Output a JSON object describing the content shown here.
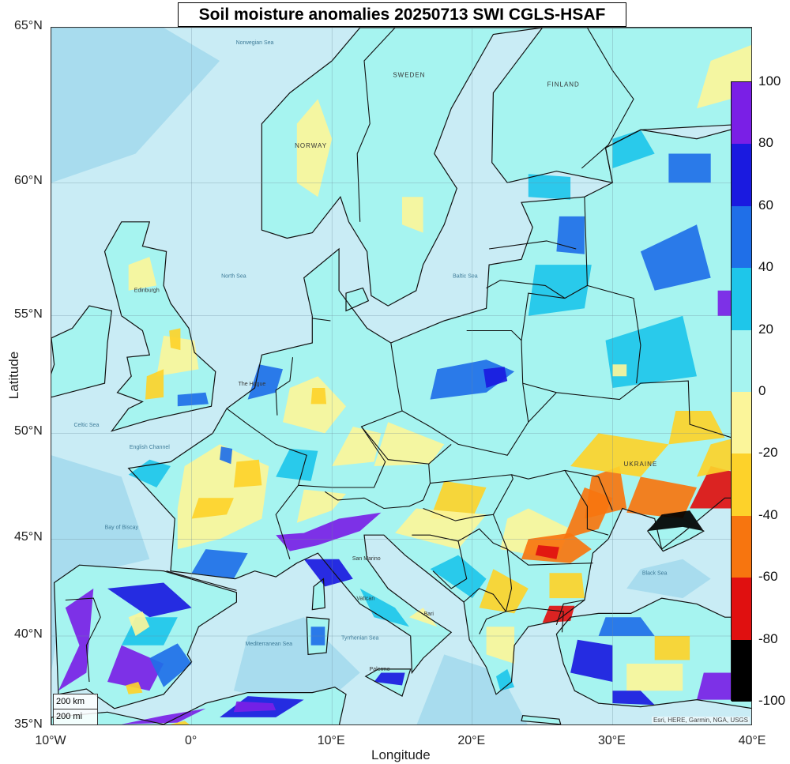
{
  "title": "Soil moisture anomalies 20250713 SWI CGLS-HSAF",
  "axes": {
    "xlabel": "Longitude",
    "ylabel": "Latitude",
    "x_ticks": [
      {
        "label": "10°W",
        "lon": -10
      },
      {
        "label": "0°",
        "lon": 0
      },
      {
        "label": "10°E",
        "lon": 10
      },
      {
        "label": "20°E",
        "lon": 20
      },
      {
        "label": "30°E",
        "lon": 30
      },
      {
        "label": "40°E",
        "lon": 40
      }
    ],
    "y_ticks": [
      {
        "label": "65°N",
        "lat": 65
      },
      {
        "label": "60°N",
        "lat": 60
      },
      {
        "label": "55°N",
        "lat": 55
      },
      {
        "label": "50°N",
        "lat": 50
      },
      {
        "label": "45°N",
        "lat": 45
      },
      {
        "label": "40°N",
        "lat": 40
      },
      {
        "label": "35°N",
        "lat": 35
      }
    ],
    "lon_range": [
      -10,
      40
    ],
    "lat_range": [
      35,
      65
    ]
  },
  "colorbar": {
    "ticks": [
      "100",
      "80",
      "60",
      "40",
      "20",
      "0",
      "-20",
      "-40",
      "-60",
      "-80",
      "-100"
    ],
    "segments": [
      {
        "from": 80,
        "to": 100,
        "color": "#7a1fe6"
      },
      {
        "from": 60,
        "to": 80,
        "color": "#1a1ae0"
      },
      {
        "from": 40,
        "to": 60,
        "color": "#1f6fe8"
      },
      {
        "from": 20,
        "to": 40,
        "color": "#1ec6ea"
      },
      {
        "from": 0,
        "to": 20,
        "color": "#a6f4f0"
      },
      {
        "from": -20,
        "to": 0,
        "color": "#fbf59a"
      },
      {
        "from": -40,
        "to": -20,
        "color": "#fdd22a"
      },
      {
        "from": -60,
        "to": -40,
        "color": "#f7750f"
      },
      {
        "from": -80,
        "to": -60,
        "color": "#e01010"
      },
      {
        "from": -100,
        "to": -80,
        "color": "#000000"
      }
    ]
  },
  "map_labels": {
    "countries": [
      "NORWAY",
      "SWEDEN",
      "FINLAND",
      "UKRAINE"
    ],
    "seas": [
      "North Sea",
      "Norwegian Sea",
      "Baltic Sea",
      "Black Sea",
      "Mediterranean Sea",
      "Tyrrhenian Sea",
      "Bay of Biscay",
      "Celtic Sea",
      "English Channel"
    ],
    "cities": [
      "Edinburgh",
      "The Hague",
      "San Marino",
      "Vatican",
      "Bari",
      "Palermo"
    ]
  },
  "scale_bar": {
    "km": "200 km",
    "mi": "200 mi"
  },
  "attribution": "Esri, HERE, Garmin, NGA, USGS",
  "colors": {
    "sea": "#c9ecf5",
    "deep_sea": "#a8dcee",
    "land_base": "#a6f4f0",
    "border": "#111111"
  }
}
